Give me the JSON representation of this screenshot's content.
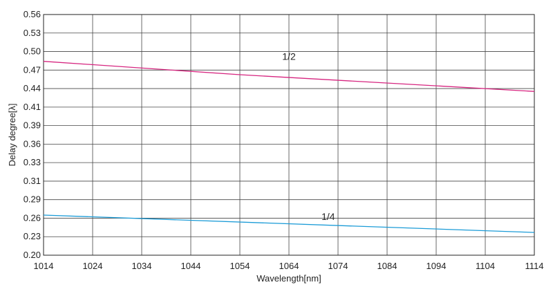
{
  "chart_data": {
    "type": "line",
    "xlabel": "Wavelength[nm]",
    "ylabel": "Delay degree[λ]",
    "xlim": [
      1014,
      1114
    ],
    "ylim": [
      0.2,
      0.56
    ],
    "x_ticks": [
      "1014",
      "1024",
      "1034",
      "1044",
      "1054",
      "1064",
      "1074",
      "1084",
      "1094",
      "1104",
      "1114"
    ],
    "y_ticks": [
      "0.20",
      "0.23",
      "0.26",
      "0.29",
      "0.31",
      "0.33",
      "0.36",
      "0.39",
      "0.41",
      "0.44",
      "0.47",
      "0.50",
      "0.53",
      "0.56"
    ],
    "grid": true,
    "series": [
      {
        "name": "1/2",
        "color": "#d6247f",
        "x": [
          1014,
          1054,
          1114
        ],
        "y": [
          0.49,
          0.47,
          0.445
        ],
        "label_x": 1064,
        "label_y": 0.492
      },
      {
        "name": "1/4",
        "color": "#1a9bd7",
        "x": [
          1014,
          1114
        ],
        "y": [
          0.26,
          0.234
        ],
        "label_x": 1072,
        "label_y": 0.253
      }
    ]
  }
}
